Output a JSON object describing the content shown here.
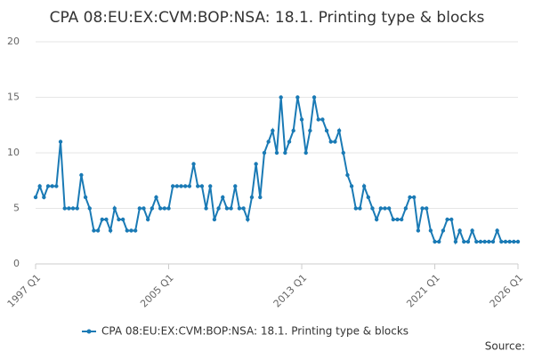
{
  "chart_data": {
    "type": "line",
    "title": "CPA 08:EU:EX:CVM:BOP:NSA: 18.1. Printing type & blocks",
    "categories": [
      "1997 Q1",
      null,
      null,
      null,
      null,
      null,
      null,
      null,
      null,
      null,
      null,
      null,
      null,
      null,
      null,
      null,
      null,
      null,
      null,
      null,
      null,
      null,
      null,
      null,
      null,
      null,
      null,
      null,
      null,
      null,
      null,
      null,
      "2005 Q1",
      null,
      null,
      null,
      null,
      null,
      null,
      null,
      null,
      null,
      null,
      null,
      null,
      null,
      null,
      null,
      null,
      null,
      null,
      null,
      null,
      null,
      null,
      null,
      null,
      null,
      null,
      null,
      null,
      null,
      null,
      null,
      "2013 Q1",
      null,
      null,
      null,
      null,
      null,
      null,
      null,
      null,
      null,
      null,
      null,
      null,
      null,
      null,
      null,
      null,
      null,
      null,
      null,
      null,
      null,
      null,
      null,
      null,
      null,
      null,
      null,
      null,
      null,
      null,
      null,
      "2021 Q1",
      null,
      null,
      null,
      null,
      null,
      null,
      null,
      null,
      null,
      null,
      null,
      null,
      null,
      null,
      null,
      null,
      null,
      null,
      null,
      "2026 Q1"
    ],
    "series": [
      {
        "name": "CPA 08:EU:EX:CVM:BOP:NSA: 18.1. Printing type & blocks",
        "color": "#1a7ab5",
        "values": [
          6,
          7,
          6,
          7,
          7,
          7,
          11,
          5,
          5,
          5,
          5,
          8,
          6,
          5,
          3,
          3,
          4,
          4,
          3,
          5,
          4,
          4,
          3,
          3,
          3,
          5,
          5,
          4,
          5,
          6,
          5,
          5,
          5,
          7,
          7,
          7,
          7,
          7,
          9,
          7,
          7,
          5,
          7,
          4,
          5,
          6,
          5,
          5,
          7,
          5,
          5,
          4,
          6,
          9,
          6,
          10,
          11,
          12,
          10,
          15,
          10,
          11,
          12,
          15,
          13,
          10,
          12,
          15,
          13,
          13,
          12,
          11,
          11,
          12,
          10,
          8,
          7,
          5,
          5,
          7,
          6,
          5,
          4,
          5,
          5,
          5,
          4,
          4,
          4,
          5,
          6,
          6,
          3,
          5,
          5,
          3,
          2,
          2,
          3,
          4,
          4,
          2,
          3,
          2,
          2,
          3,
          2,
          2,
          2,
          2,
          2,
          3,
          2,
          2,
          2,
          2,
          2
        ]
      }
    ],
    "ylim": [
      0,
      20
    ],
    "yticks": [
      0,
      5,
      10,
      15,
      20
    ],
    "grid": true,
    "legend": "bottom",
    "source": "Source:"
  }
}
